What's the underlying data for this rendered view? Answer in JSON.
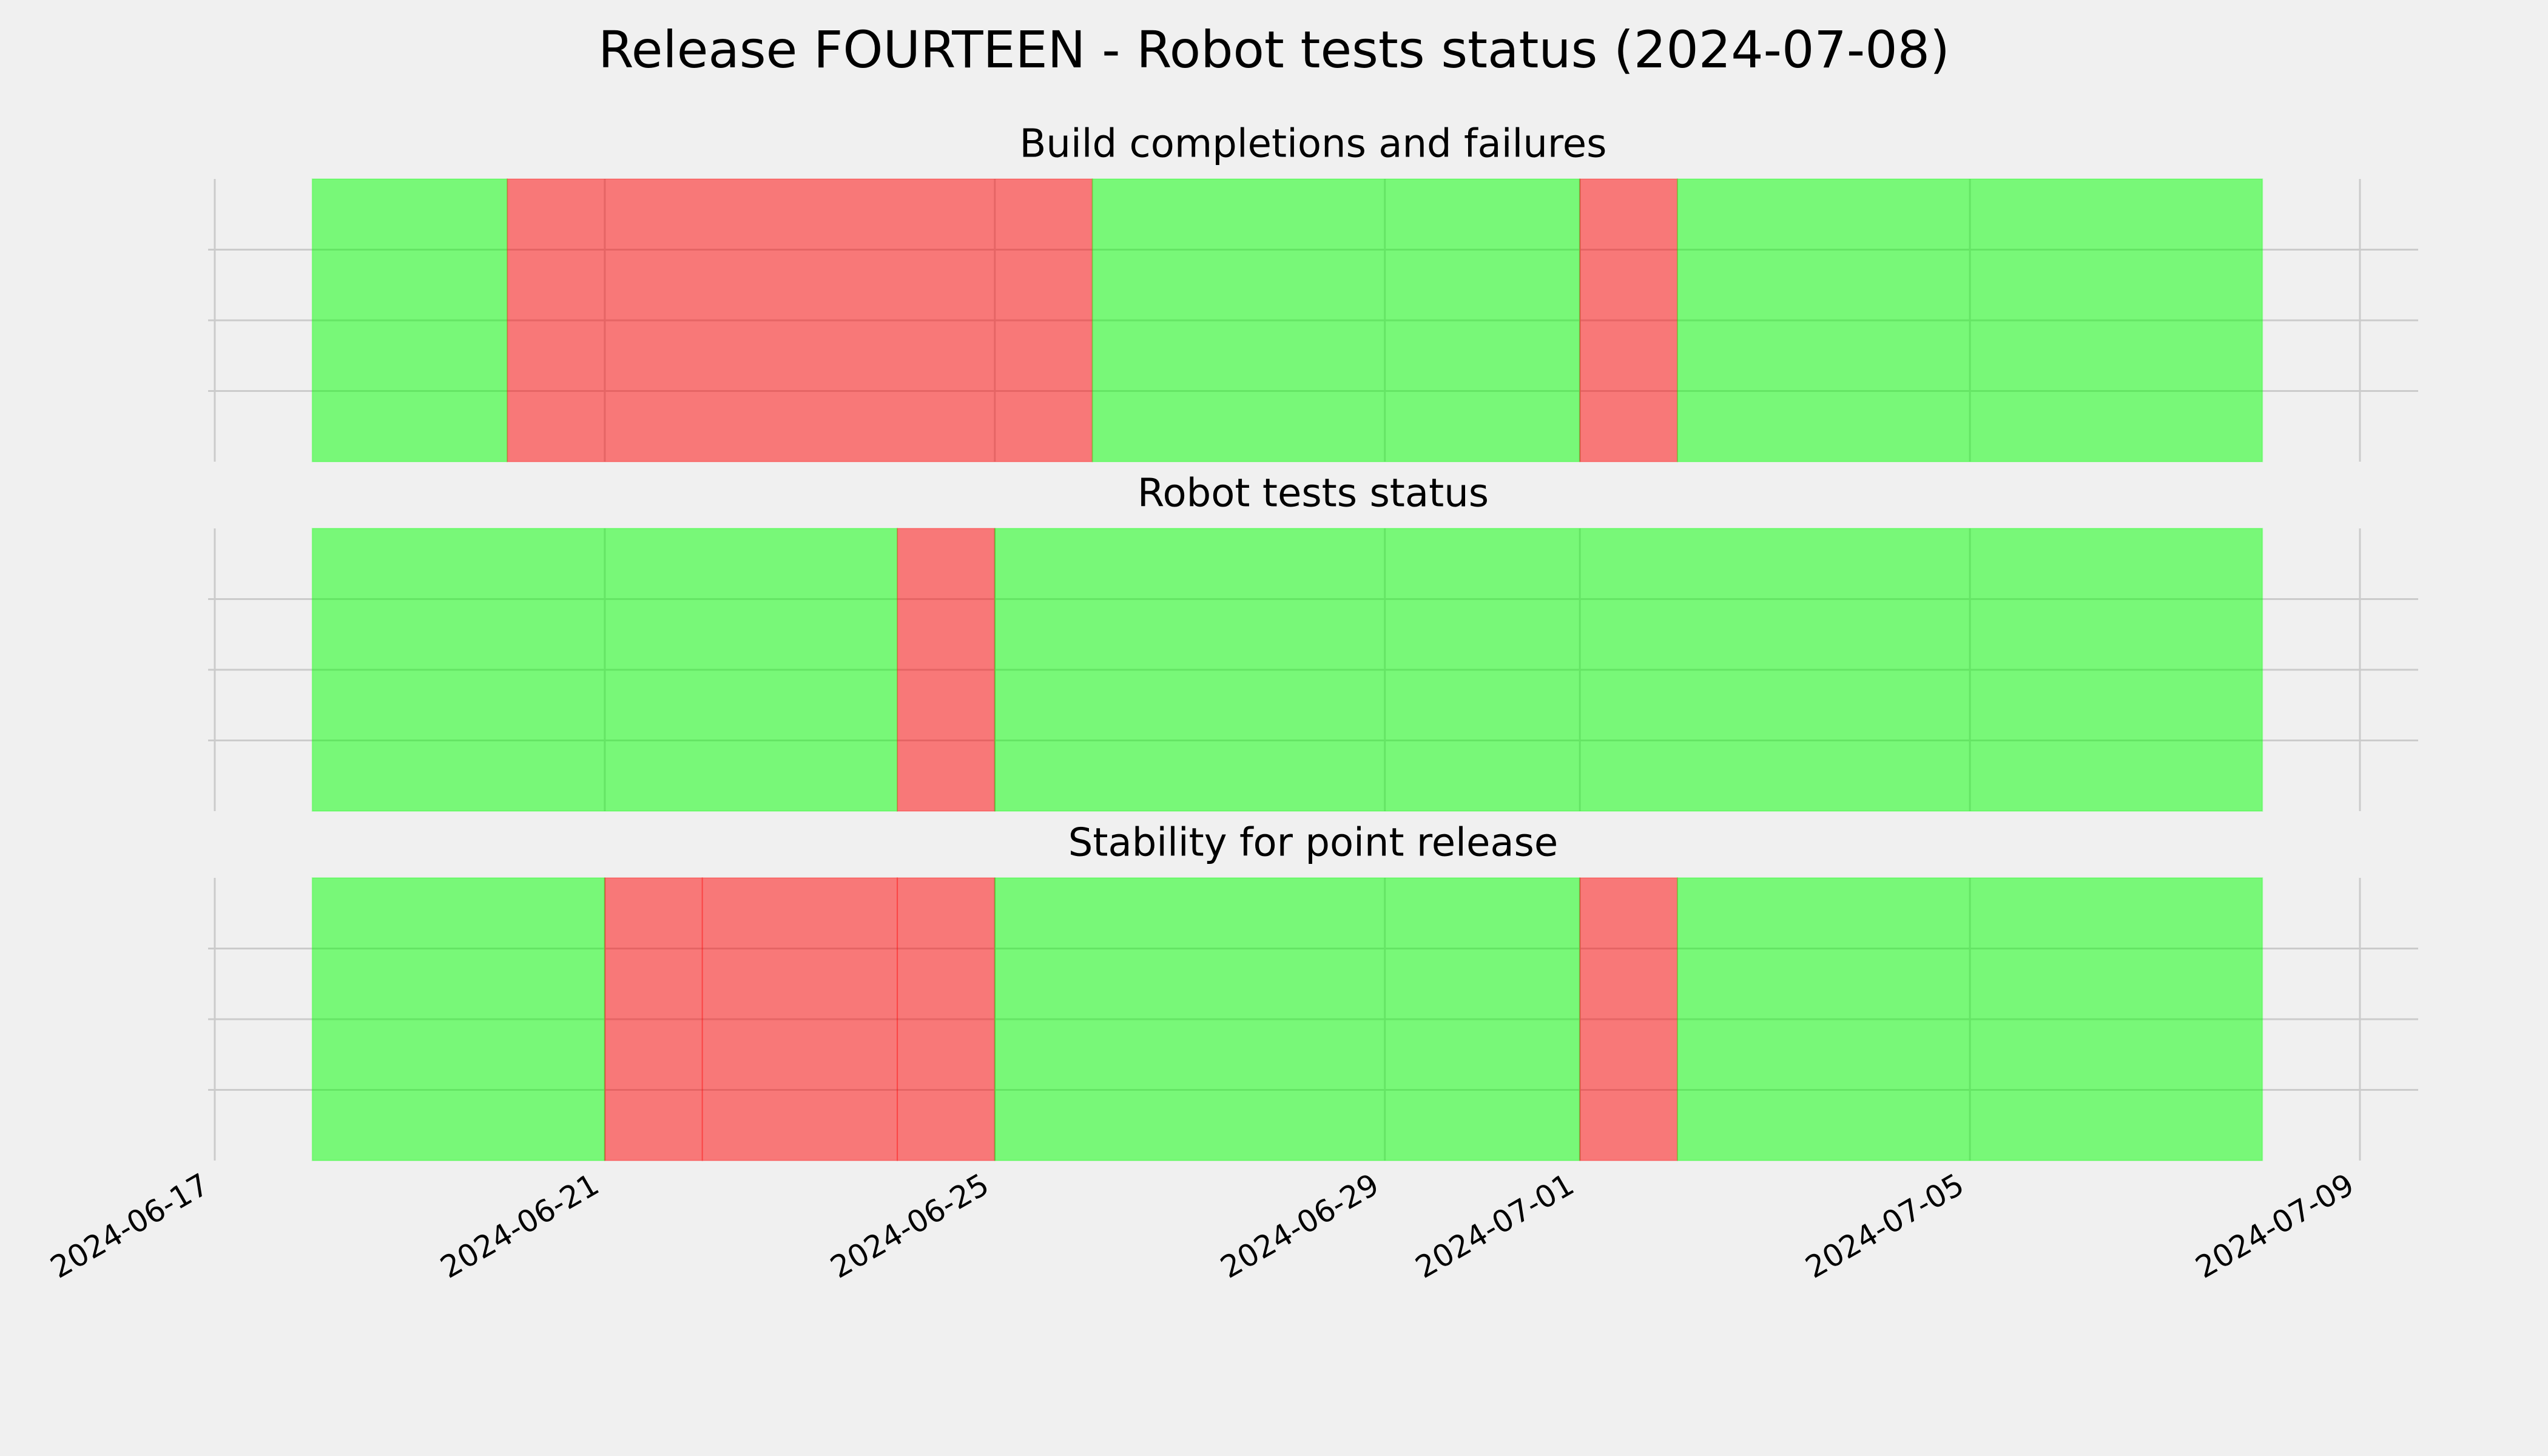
{
  "title": "Release FOURTEEN - Robot tests status (2024-07-08)",
  "chart_data": [
    {
      "type": "timeline",
      "title": "Build completions and failures",
      "bins": [
        "2024-06-18",
        "2024-06-20",
        "2024-06-26",
        "2024-07-01",
        "2024-07-02",
        "2024-07-08"
      ],
      "colors": [
        "#00ff00",
        "#ff0000",
        "#00ff00",
        "#ff0000",
        "#00ff00"
      ],
      "xlim": [
        "2024-06-17",
        "2024-07-09"
      ],
      "xticks": [
        "2024-06-17",
        "2024-06-21",
        "2024-06-25",
        "2024-06-29",
        "2024-07-01",
        "2024-07-05",
        "2024-07-09"
      ],
      "ylim": [
        0,
        1
      ],
      "yticks": [
        0.25,
        0.5,
        0.75
      ],
      "grid": true
    },
    {
      "type": "timeline",
      "title": "Robot tests status",
      "bins": [
        "2024-06-18",
        "2024-06-24",
        "2024-06-25",
        "2024-07-08"
      ],
      "colors": [
        "#00ff00",
        "#ff0000",
        "#00ff00"
      ],
      "xlim": [
        "2024-06-17",
        "2024-07-09"
      ],
      "xticks": [
        "2024-06-17",
        "2024-06-21",
        "2024-06-25",
        "2024-06-29",
        "2024-07-01",
        "2024-07-05",
        "2024-07-09"
      ],
      "ylim": [
        0,
        1
      ],
      "yticks": [
        0.25,
        0.5,
        0.75
      ],
      "grid": true
    },
    {
      "type": "timeline",
      "title": "Stability for point release",
      "bins": [
        "2024-06-18",
        "2024-06-21",
        "2024-06-22",
        "2024-06-24",
        "2024-06-25",
        "2024-07-01",
        "2024-07-02",
        "2024-07-08"
      ],
      "colors": [
        "#00ff00",
        "#ff0000",
        "#ff0000",
        "#ff0000",
        "#00ff00",
        "#ff0000",
        "#00ff00"
      ],
      "xlim": [
        "2024-06-17",
        "2024-07-09"
      ],
      "xticks": [
        "2024-06-17",
        "2024-06-21",
        "2024-06-25",
        "2024-06-29",
        "2024-07-01",
        "2024-07-05",
        "2024-07-09"
      ],
      "ylim": [
        0,
        1
      ],
      "yticks": [
        0.25,
        0.5,
        0.75
      ],
      "grid": true,
      "show_xtick_labels": true
    }
  ]
}
